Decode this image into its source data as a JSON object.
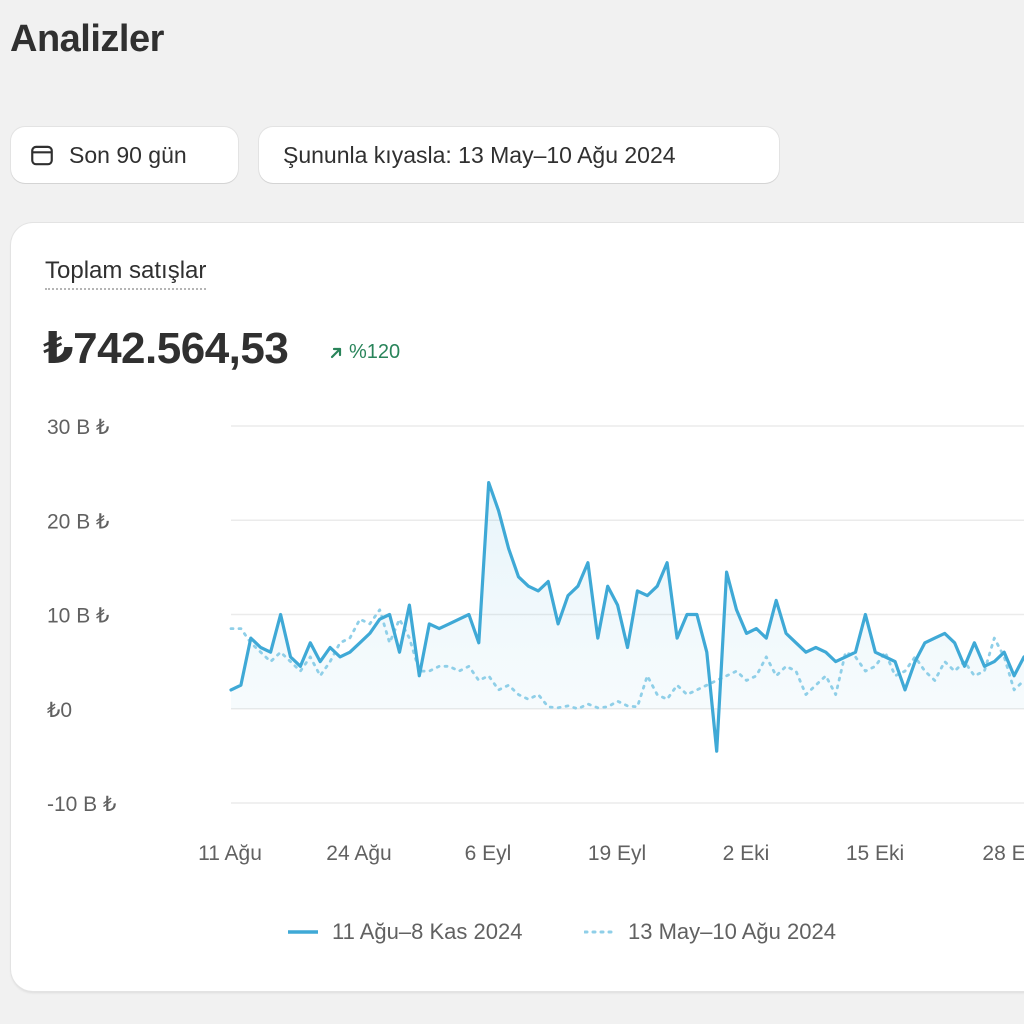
{
  "header": {
    "title": "Analizler"
  },
  "filters": {
    "date_range_label": "Son 90 gün",
    "compare_label": "Şununla kıyasla: 13 May–10 Ağu 2024"
  },
  "icons": {
    "calendar": "calendar-icon",
    "trend": "arrow-up-right-icon"
  },
  "colors": {
    "primary_series": "#3fa9d6",
    "comparison_series": "#8fcfe8",
    "positive_change": "#29845a",
    "grid": "#ebebeb"
  },
  "card": {
    "metric_title": "Toplam satışlar",
    "metric_value": "₺742.564,53",
    "metric_change": "%120"
  },
  "chart_data": {
    "type": "line",
    "y_ticks": [
      "30 B ₺",
      "20 B ₺",
      "10 B ₺",
      "₺0",
      "-10 B ₺"
    ],
    "x_ticks": [
      "11 Ağu",
      "24 Ağu",
      "6 Eyl",
      "19 Eyl",
      "2 Eki",
      "15 Eki",
      "28 E"
    ],
    "ylim": [
      -10000,
      30000
    ],
    "grid": true,
    "legend_position": "bottom",
    "series": [
      {
        "name": "11 Ağu–8 Kas 2024",
        "style": "solid",
        "values": [
          2000,
          2500,
          7500,
          6500,
          6000,
          10000,
          5500,
          4500,
          7000,
          5000,
          6500,
          5500,
          6000,
          7000,
          8000,
          9500,
          10000,
          6000,
          11000,
          3500,
          9000,
          8500,
          9000,
          9500,
          10000,
          7000,
          24000,
          21000,
          17000,
          14000,
          13000,
          12500,
          13500,
          9000,
          12000,
          13000,
          15500,
          7500,
          13000,
          11000,
          6500,
          12500,
          12000,
          13000,
          15500,
          7500,
          10000,
          10000,
          6000,
          -4500,
          14500,
          10500,
          8000,
          8500,
          7500,
          11500,
          8000,
          7000,
          6000,
          6500,
          6000,
          5000,
          5500,
          6000,
          10000,
          6000,
          5500,
          5000,
          2000,
          5000,
          7000,
          7500,
          8000,
          7000,
          4500,
          7000,
          4500,
          5000,
          6000,
          3500,
          5500
        ]
      },
      {
        "name": "13 May–10 Ağu 2024",
        "style": "dotted",
        "values": [
          8500,
          8500,
          7000,
          6000,
          5000,
          6000,
          5000,
          4000,
          5500,
          3500,
          5000,
          7000,
          7500,
          9500,
          9000,
          10500,
          7000,
          9500,
          7500,
          4000,
          4000,
          4500,
          4500,
          4000,
          4500,
          3000,
          3500,
          2000,
          2500,
          1500,
          1000,
          1500,
          200,
          100,
          300,
          0,
          500,
          100,
          200,
          800,
          300,
          200,
          3500,
          1500,
          1000,
          2500,
          1500,
          2000,
          2500,
          3000,
          3500,
          4000,
          3000,
          3500,
          5500,
          3500,
          4500,
          4000,
          1500,
          2500,
          3500,
          1500,
          6000,
          5500,
          4000,
          4500,
          6000,
          3500,
          4000,
          5500,
          4000,
          3000,
          5000,
          4000,
          5000,
          3500,
          4000,
          7500,
          5500,
          2000,
          3000
        ]
      }
    ]
  }
}
